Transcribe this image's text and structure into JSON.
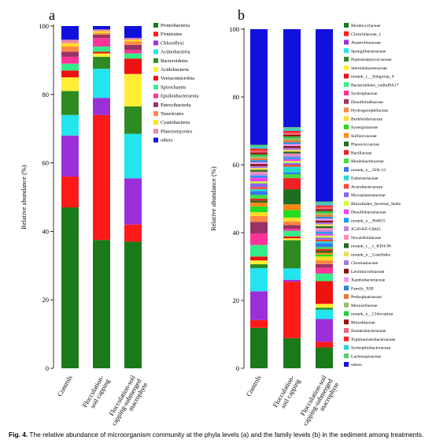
{
  "caption": {
    "label": "Fig. 4.",
    "text": "The relative abundance of microorganism community at the phyla levels (a) and the family levels (b) in the sediment among treatments."
  },
  "chart_data": [
    {
      "type": "bar",
      "stacked": true,
      "panel_label": "a",
      "ylabel": "Relative abundance (%)",
      "ylim": [
        0,
        100
      ],
      "yticks": [
        0,
        20,
        40,
        60,
        80,
        100
      ],
      "categories": [
        "Controls",
        "Flocculation-soil capping",
        "Flocculation-soil capping-submerged macrophyte"
      ],
      "legend_position": "right",
      "series": [
        {
          "name": "Proteobacteria",
          "color": "#1a7a1a",
          "values": [
            47,
            37.5,
            37
          ]
        },
        {
          "name": "Firmicutes",
          "color": "#ff1a1a",
          "values": [
            9,
            36.5,
            5
          ]
        },
        {
          "name": "Chloroflexi",
          "color": "#9b30d9",
          "values": [
            12,
            5,
            13.5
          ]
        },
        {
          "name": "Actinobacteria",
          "color": "#22e5ee",
          "values": [
            6,
            8.5,
            13
          ]
        },
        {
          "name": "Bacteroidetes",
          "color": "#2e8b22",
          "values": [
            7,
            3.5,
            8
          ]
        },
        {
          "name": "Acidobacteria",
          "color": "#ffee33",
          "values": [
            4,
            1,
            9.5
          ]
        },
        {
          "name": "Verrucomicrobia",
          "color": "#ee1111",
          "values": [
            2,
            0.5,
            4.5
          ]
        },
        {
          "name": "Spirochaetes",
          "color": "#33ee88",
          "values": [
            2,
            1.5,
            1.5
          ]
        },
        {
          "name": "Epsilonbacteraeota",
          "color": "#ff3399",
          "values": [
            2,
            2.5,
            1
          ]
        },
        {
          "name": "Patescibacteria",
          "color": "#993366",
          "values": [
            1.5,
            1,
            1.5
          ]
        },
        {
          "name": "Tenericutes",
          "color": "#ff8844",
          "values": [
            1.5,
            0.5,
            1
          ]
        },
        {
          "name": "Cyanobacteria",
          "color": "#ffdd22",
          "values": [
            1,
            0.5,
            0.5
          ]
        },
        {
          "name": "Planctomycetes",
          "color": "#ee88aa",
          "values": [
            1,
            0.5,
            0.5
          ]
        },
        {
          "name": "others",
          "color": "#1111dd",
          "values": [
            4,
            1,
            3.5
          ]
        }
      ]
    },
    {
      "type": "bar",
      "stacked": true,
      "panel_label": "b",
      "ylabel": "Relative abundance (%)",
      "ylim": [
        0,
        100
      ],
      "yticks": [
        0,
        20,
        40,
        60,
        80,
        100
      ],
      "categories": [
        "Controls",
        "Flocculation-soil capping",
        "Flocculation-soil capping-submerged macrophyte"
      ],
      "legend_position": "right",
      "series": [
        {
          "name": "Rhodocyclaceae",
          "color": "#1a7a1a",
          "values": [
            10.5,
            8,
            5.5
          ]
        },
        {
          "name": "Clostridiaceae_1",
          "color": "#ff1a1a",
          "values": [
            2,
            15,
            1.5
          ]
        },
        {
          "name": "Anaerolineaceae",
          "color": "#9b30d9",
          "values": [
            7.5,
            0.5,
            6
          ]
        },
        {
          "name": "Spongiibacteraceae",
          "color": "#22e5ee",
          "values": [
            6,
            3,
            2.5
          ]
        },
        {
          "name": "Peptostreptococcaceae",
          "color": "#2e8b22",
          "values": [
            1,
            7.5,
            0.5
          ]
        },
        {
          "name": "Steroidobacteraceae",
          "color": "#ffee33",
          "values": [
            1,
            0.5,
            1
          ]
        },
        {
          "name": "norank_c__Subgroup_6",
          "color": "#ee1111",
          "values": [
            1,
            0.5,
            6
          ]
        },
        {
          "name": "Bacteroidetes_vadinHA17",
          "color": "#33ee88",
          "values": [
            3,
            1.5,
            2
          ]
        },
        {
          "name": "Syntrophaceae",
          "color": "#ff3399",
          "values": [
            3,
            0.5,
            1.5
          ]
        },
        {
          "name": "Desulfobulbaceae",
          "color": "#993366",
          "values": [
            3,
            1,
            1
          ]
        },
        {
          "name": "Hydrogenophilaceae",
          "color": "#ff8844",
          "values": [
            1.5,
            1,
            1
          ]
        },
        {
          "name": "Burkholderiaceae",
          "color": "#ffdd22",
          "values": [
            1,
            1,
            1
          ]
        },
        {
          "name": "Synergistaceae",
          "color": "#22dd22",
          "values": [
            1.5,
            2,
            0.5
          ]
        },
        {
          "name": "Sulfurovaceae",
          "color": "#ff8811",
          "values": [
            1,
            1.5,
            0.5
          ]
        },
        {
          "name": "Planococcaceae",
          "color": "#1f6e1f",
          "values": [
            0.5,
            4,
            0.5
          ]
        },
        {
          "name": "Bacillaceae",
          "color": "#ee2222",
          "values": [
            0.5,
            3,
            0.5
          ]
        },
        {
          "name": "Rhodobacteraceae",
          "color": "#44dd44",
          "values": [
            1,
            1,
            0.5
          ]
        },
        {
          "name": "norank_o__SJA-15",
          "color": "#3377ee",
          "values": [
            1,
            0.5,
            1
          ]
        },
        {
          "name": "Eubacteriaceae",
          "color": "#22ddcc",
          "values": [
            0.5,
            1.5,
            0.5
          ]
        },
        {
          "name": "Acetobacteraceae",
          "color": "#ff4433",
          "values": [
            0.5,
            0.5,
            0.5
          ]
        },
        {
          "name": "Mycoplasmataceae",
          "color": "#8866ee",
          "values": [
            1,
            0.5,
            0.5
          ]
        },
        {
          "name": "Rhizobiales_Incertae_Sedis",
          "color": "#ccff33",
          "values": [
            0.5,
            0.5,
            0.5
          ]
        },
        {
          "name": "Desulfobacteraceae",
          "color": "#ee44ee",
          "values": [
            1,
            0.5,
            0.5
          ]
        },
        {
          "name": "norank_o__PeM15",
          "color": "#2299ee",
          "values": [
            0.5,
            0.5,
            0.5
          ]
        },
        {
          "name": "JG30-KF-CM45",
          "color": "#bb88dd",
          "values": [
            0.5,
            0.5,
            0.5
          ]
        },
        {
          "name": "Nocardioidaceae",
          "color": "#ff88bb",
          "values": [
            0.5,
            0.5,
            0.5
          ]
        },
        {
          "name": "norank_c__c_KD4-96",
          "color": "#226622",
          "values": [
            0.5,
            0.5,
            0.5
          ]
        },
        {
          "name": "norank_o__Gaiellales",
          "color": "#eedd55",
          "values": [
            0.5,
            0.5,
            0.5
          ]
        },
        {
          "name": "Chromatiaceae",
          "color": "#aa77dd",
          "values": [
            0.5,
            0.5,
            0.5
          ]
        },
        {
          "name": "Lentimicrobiaceae",
          "color": "#881111",
          "values": [
            0.5,
            0.5,
            0.5
          ]
        },
        {
          "name": "Xanthobacteraceae",
          "color": "#ee99ee",
          "values": [
            0.5,
            0.5,
            0.5
          ]
        },
        {
          "name": "Family_XIII",
          "color": "#2288dd",
          "values": [
            0.5,
            0.5,
            0.5
          ]
        },
        {
          "name": "Pedosphaeraceae",
          "color": "#ee7733",
          "values": [
            0.5,
            0.5,
            0.5
          ]
        },
        {
          "name": "Moraxellaceae",
          "color": "#99bb66",
          "values": [
            0.5,
            0.5,
            0.5
          ]
        },
        {
          "name": "norank_o__Chloroplast",
          "color": "#22cc44",
          "values": [
            0.5,
            0.5,
            0.5
          ]
        },
        {
          "name": "Rhizobiaceae",
          "color": "#991111",
          "values": [
            0.5,
            0.5,
            0.5
          ]
        },
        {
          "name": "Ilumatobacteraceae",
          "color": "#ee6677",
          "values": [
            0.5,
            0.5,
            0.5
          ]
        },
        {
          "name": "Xiphinematobacteraceae",
          "color": "#ff2222",
          "values": [
            0.5,
            0.5,
            0.5
          ]
        },
        {
          "name": "Syntrophobacteraceae",
          "color": "#33ccdd",
          "values": [
            0.5,
            0.5,
            0.5
          ]
        },
        {
          "name": "Lachnospiraceae",
          "color": "#55cc77",
          "values": [
            0.5,
            0.5,
            0.5
          ]
        },
        {
          "name": "others",
          "color": "#1111dd",
          "values": [
            30,
            26,
            45.5
          ]
        }
      ]
    }
  ]
}
